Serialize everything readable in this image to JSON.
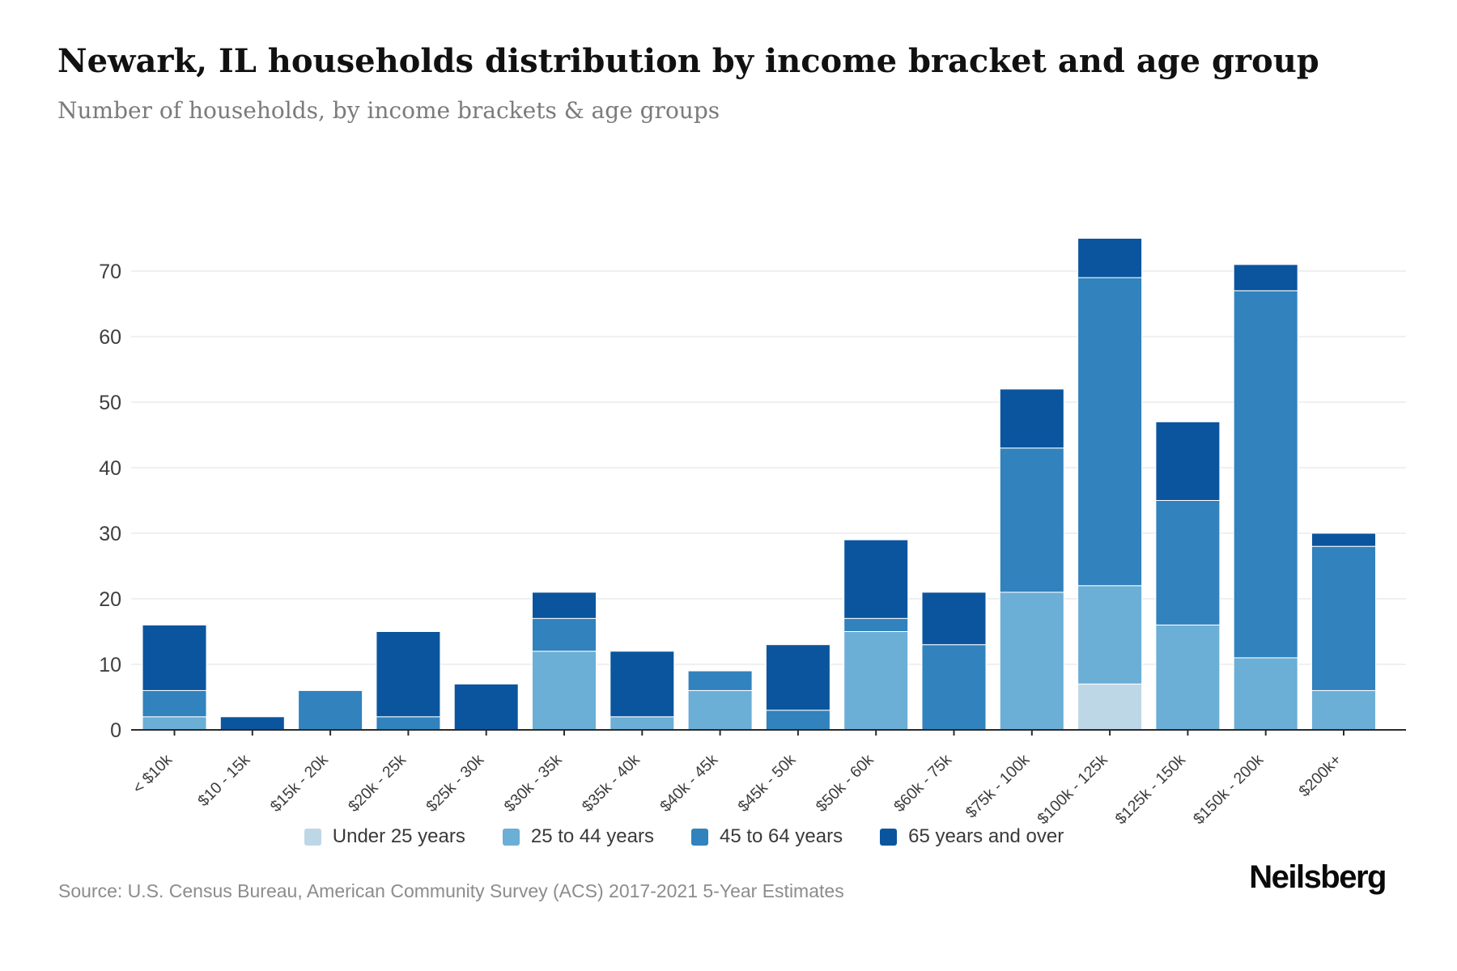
{
  "chart_data": {
    "type": "bar",
    "stacked": true,
    "title": "Newark, IL households distribution by income bracket and age group",
    "subtitle": "Number of households, by income brackets & age groups",
    "categories": [
      "< $10k",
      "$10 - 15k",
      "$15k - 20k",
      "$20k - 25k",
      "$25k - 30k",
      "$30k - 35k",
      "$35k - 40k",
      "$40k - 45k",
      "$45k - 50k",
      "$50k - 60k",
      "$60k - 75k",
      "$75k - 100k",
      "$100k - 125k",
      "$125k - 150k",
      "$150k - 200k",
      "$200k+"
    ],
    "series": [
      {
        "name": "Under 25 years",
        "color": "#bdd7e7",
        "values": [
          0,
          0,
          0,
          0,
          0,
          0,
          0,
          0,
          0,
          0,
          0,
          0,
          7,
          0,
          0,
          0
        ]
      },
      {
        "name": "25 to 44 years",
        "color": "#6baed6",
        "values": [
          2,
          0,
          0,
          0,
          0,
          12,
          2,
          6,
          0,
          15,
          0,
          21,
          15,
          16,
          11,
          6
        ]
      },
      {
        "name": "45 to 64 years",
        "color": "#3182bd",
        "values": [
          4,
          0,
          6,
          2,
          0,
          5,
          0,
          3,
          3,
          2,
          13,
          22,
          47,
          19,
          56,
          22
        ]
      },
      {
        "name": "65 years and over",
        "color": "#0b559e",
        "values": [
          10,
          2,
          0,
          13,
          7,
          4,
          10,
          0,
          10,
          12,
          8,
          9,
          6,
          12,
          4,
          2
        ]
      }
    ],
    "totals": [
      16,
      2,
      6,
      15,
      7,
      21,
      12,
      9,
      13,
      29,
      21,
      52,
      75,
      47,
      71,
      30
    ],
    "xlabel": "",
    "ylabel": "",
    "ylim": [
      0,
      77
    ],
    "yticks": [
      0,
      10,
      20,
      30,
      40,
      50,
      60,
      70
    ],
    "grid": true,
    "legend_position": "bottom"
  },
  "footer": {
    "source": "Source: U.S. Census Bureau, American Community Survey (ACS) 2017-2021 5-Year Estimates",
    "brand": "Neilsberg"
  }
}
